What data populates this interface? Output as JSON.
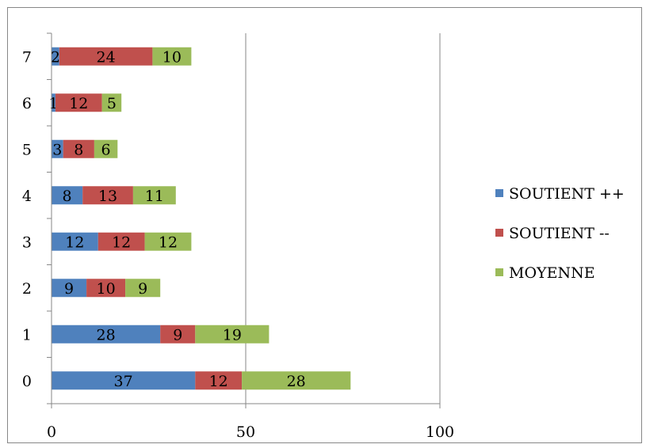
{
  "chart_data": {
    "type": "bar",
    "orientation": "horizontal",
    "stacked": true,
    "categories": [
      "0",
      "1",
      "2",
      "3",
      "4",
      "5",
      "6",
      "7"
    ],
    "series": [
      {
        "name": "SOUTIENT ++",
        "color": "#4f81bd",
        "values": [
          37,
          28,
          9,
          12,
          8,
          3,
          1,
          2
        ]
      },
      {
        "name": "SOUTIENT --",
        "color": "#c0504d",
        "values": [
          12,
          9,
          10,
          12,
          13,
          8,
          12,
          24
        ]
      },
      {
        "name": "MOYENNE",
        "color": "#9bbb59",
        "values": [
          28,
          19,
          9,
          12,
          11,
          6,
          5,
          10
        ]
      }
    ],
    "xlim": [
      0,
      100
    ],
    "xticks": [
      "0",
      "50",
      "100"
    ],
    "title": "",
    "xlabel": "",
    "ylabel": "",
    "grid": "vertical",
    "legend": "right"
  }
}
